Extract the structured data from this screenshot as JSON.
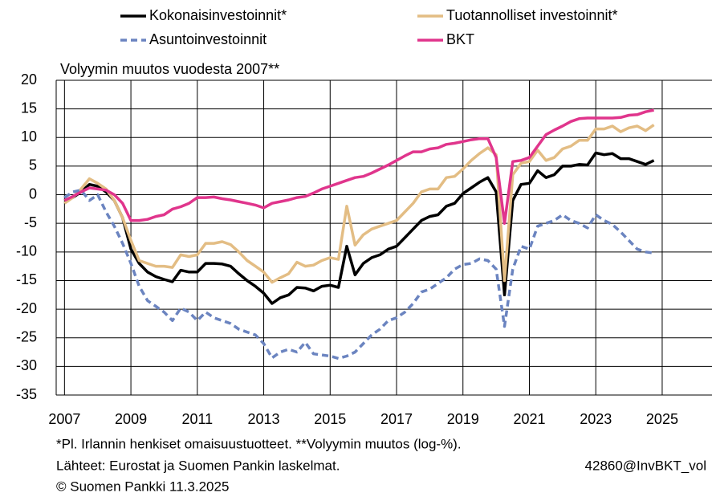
{
  "chart_data": {
    "type": "line",
    "title": "Volyymin muutos vuodesta 2007**",
    "footnotes": [
      "*Pl. Irlannin henkiset omaisuustuotteet. **Volyymin muutos (log-%).",
      "Lähteet: Eurostat ja Suomen Pankin laskelmat.",
      "© Suomen Pankki 11.3.2025"
    ],
    "code": "42860@InvBKT_vol",
    "x": [
      2007,
      2007.25,
      2007.5,
      2007.75,
      2008,
      2008.25,
      2008.5,
      2008.75,
      2009,
      2009.25,
      2009.5,
      2009.75,
      2010,
      2010.25,
      2010.5,
      2010.75,
      2011,
      2011.25,
      2011.5,
      2011.75,
      2012,
      2012.25,
      2012.5,
      2012.75,
      2013,
      2013.25,
      2013.5,
      2013.75,
      2014,
      2014.25,
      2014.5,
      2014.75,
      2015,
      2015.25,
      2015.5,
      2015.75,
      2016,
      2016.25,
      2016.5,
      2016.75,
      2017,
      2017.25,
      2017.5,
      2017.75,
      2018,
      2018.25,
      2018.5,
      2018.75,
      2019,
      2019.25,
      2019.5,
      2019.75,
      2020,
      2020.25,
      2020.5,
      2020.75,
      2021,
      2021.25,
      2021.5,
      2021.75,
      2022,
      2022.25,
      2022.5,
      2022.75,
      2023,
      2023.25,
      2023.5,
      2023.75,
      2024,
      2024.25,
      2024.5,
      2024.75
    ],
    "series": [
      {
        "name": "Kokonaisinvestoinnit*",
        "color": "#000000",
        "dash": false,
        "values": [
          -1,
          -0.5,
          0.5,
          1.8,
          1.5,
          0.5,
          -1,
          -4,
          -9.5,
          -12,
          -13.5,
          -14.3,
          -14.8,
          -15.2,
          -13.2,
          -13.5,
          -13.5,
          -12,
          -12,
          -12.1,
          -12.5,
          -13.8,
          -15,
          -16,
          -17.2,
          -19,
          -18,
          -17.5,
          -16.2,
          -16.3,
          -16.8,
          -16,
          -15.8,
          -16.2,
          -9,
          -14,
          -12,
          -11,
          -10.5,
          -9.5,
          -9,
          -7.5,
          -6,
          -4.5,
          -3.8,
          -3.5,
          -2,
          -1.5,
          0.2,
          1.2,
          2.2,
          3,
          0.5,
          -17.5,
          -1,
          1.8,
          2,
          4.2,
          3,
          3.5,
          5,
          5,
          5.3,
          5.2,
          7.3,
          7,
          7.2,
          6.3,
          6.3,
          5.8,
          5.3,
          6
        ]
      },
      {
        "name": "Tuotannolliset investoinnit*",
        "color": "#e3bd84",
        "dash": false,
        "values": [
          -1.5,
          -0.5,
          1,
          2.8,
          2,
          1,
          -1,
          -4,
          -8,
          -11.5,
          -12,
          -12.5,
          -12.5,
          -12.7,
          -10.5,
          -10.8,
          -10.5,
          -8.5,
          -8.5,
          -8.2,
          -8.7,
          -10,
          -11.5,
          -12.5,
          -13.5,
          -15.3,
          -14.5,
          -13.8,
          -11.8,
          -12.5,
          -12.3,
          -11.5,
          -11,
          -11.3,
          -2,
          -8.8,
          -7,
          -6,
          -5.5,
          -5,
          -4.5,
          -3,
          -1.5,
          0.5,
          1,
          1,
          3,
          3.2,
          4.5,
          6,
          7.2,
          8.2,
          7,
          -15,
          3.5,
          5.5,
          5.8,
          7.8,
          6,
          6.5,
          8,
          8.5,
          9.5,
          9.5,
          11.5,
          11.5,
          12,
          11,
          11.7,
          12,
          11.2,
          12.2
        ]
      },
      {
        "name": "Asuntoinvestoinnit",
        "color": "#6b84c0",
        "dash": true,
        "values": [
          -0.5,
          0.5,
          0.8,
          -1,
          0,
          -3,
          -5.5,
          -8.5,
          -12,
          -16,
          -18.5,
          -19.5,
          -20.5,
          -22,
          -19.8,
          -20.5,
          -22,
          -20.5,
          -21.5,
          -22,
          -22.5,
          -23.5,
          -24,
          -24.5,
          -26,
          -28.5,
          -27.5,
          -27,
          -27.5,
          -25.8,
          -27.8,
          -28,
          -28.2,
          -28.6,
          -28.2,
          -27.5,
          -26,
          -24.5,
          -23.5,
          -22,
          -21.5,
          -20.5,
          -19,
          -17,
          -16.5,
          -15.5,
          -14.5,
          -13,
          -12.2,
          -12,
          -11.2,
          -11.5,
          -13,
          -23,
          -13,
          -9,
          -9.5,
          -5.5,
          -5,
          -4.5,
          -3.5,
          -4.5,
          -5,
          -5.8,
          -3.5,
          -4.5,
          -5.2,
          -6.5,
          -8,
          -9.5,
          -10,
          -10.2
        ]
      },
      {
        "name": "BKT",
        "color": "#e0358c",
        "dash": false,
        "values": [
          -1,
          -0.3,
          0.5,
          1.2,
          1,
          0.8,
          0,
          -1.5,
          -4.5,
          -4.5,
          -4.3,
          -3.8,
          -3.5,
          -2.5,
          -2.1,
          -1.5,
          -0.5,
          -0.5,
          -0.4,
          -0.7,
          -0.9,
          -1.2,
          -1.5,
          -1.8,
          -2.3,
          -1.5,
          -1.2,
          -0.9,
          -0.5,
          -0.3,
          0.3,
          1,
          1.5,
          2,
          2.5,
          3,
          3.2,
          3.8,
          4.5,
          5.2,
          6,
          6.8,
          7.5,
          7.5,
          8,
          8.2,
          8.8,
          9,
          9.3,
          9.6,
          9.8,
          9.8,
          6.5,
          -5,
          5.8,
          6,
          6.5,
          8.5,
          10.5,
          11.3,
          12,
          12.8,
          13.3,
          13.4,
          13.4,
          13.4,
          13.4,
          13.5,
          13.9,
          14,
          14.5,
          14.8
        ]
      }
    ],
    "xlim": [
      2006.75,
      2026.5
    ],
    "xticks": [
      2007,
      2009,
      2011,
      2013,
      2015,
      2017,
      2019,
      2021,
      2023,
      2025
    ],
    "ylim": [
      -35,
      20
    ],
    "yticks": [
      -35,
      -30,
      -25,
      -20,
      -15,
      -10,
      -5,
      0,
      5,
      10,
      15,
      20
    ],
    "grid": true
  }
}
